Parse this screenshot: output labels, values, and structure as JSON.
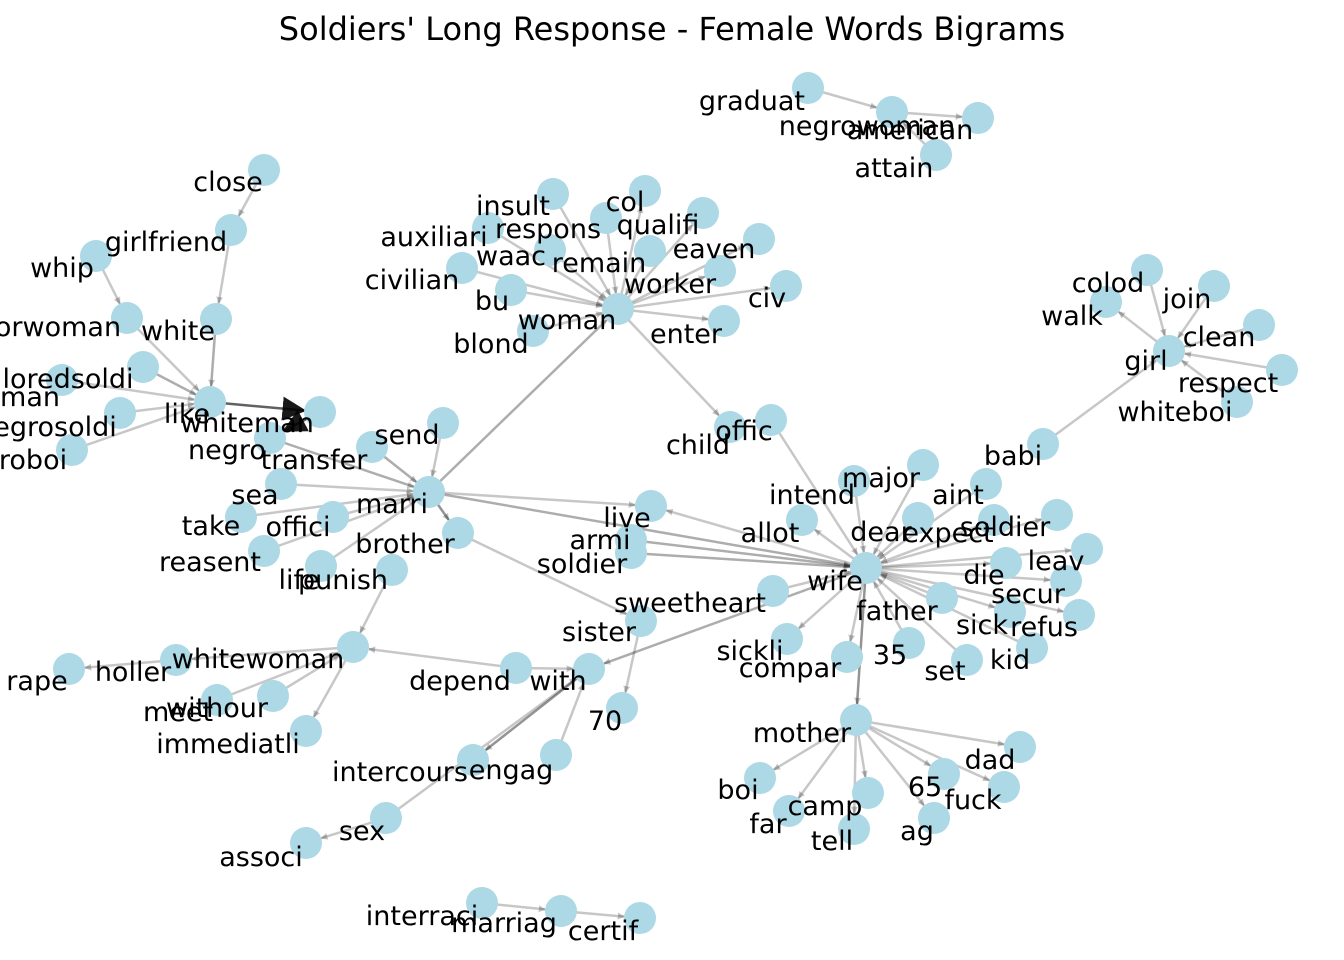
{
  "title": "Soldiers' Long Response - Female Words Bigrams",
  "node_color": "#add8e6",
  "edge_color": "#000000",
  "nodes": [
    {
      "id": "graduat",
      "label": "graduat"
    },
    {
      "id": "negrowoman",
      "label": "negrowoman"
    },
    {
      "id": "american",
      "label": "american"
    },
    {
      "id": "attain",
      "label": "attain"
    },
    {
      "id": "close",
      "label": "close"
    },
    {
      "id": "girlfriend",
      "label": "girlfriend"
    },
    {
      "id": "whip",
      "label": "whip"
    },
    {
      "id": "orwoman",
      "label": "orwoman"
    },
    {
      "id": "white",
      "label": "white"
    },
    {
      "id": "loredsoldi",
      "label": "loredsoldi"
    },
    {
      "id": "man",
      "label": "man"
    },
    {
      "id": "egrosoldi",
      "label": "egrosoldi"
    },
    {
      "id": "roboi",
      "label": "roboi"
    },
    {
      "id": "like",
      "label": "like"
    },
    {
      "id": "whiteman",
      "label": "whiteman"
    },
    {
      "id": "negro",
      "label": "negro"
    },
    {
      "id": "transfer",
      "label": "transfer"
    },
    {
      "id": "send",
      "label": "send"
    },
    {
      "id": "sea",
      "label": "sea"
    },
    {
      "id": "take",
      "label": "take"
    },
    {
      "id": "offici",
      "label": "offici"
    },
    {
      "id": "reasent",
      "label": "reasent"
    },
    {
      "id": "life",
      "label": "life"
    },
    {
      "id": "punish",
      "label": "punish"
    },
    {
      "id": "marri",
      "label": "marri"
    },
    {
      "id": "brother",
      "label": "brother"
    },
    {
      "id": "insult",
      "label": "insult"
    },
    {
      "id": "col",
      "label": "col"
    },
    {
      "id": "respons",
      "label": "respons"
    },
    {
      "id": "qualifi",
      "label": "qualifi"
    },
    {
      "id": "auxiliari",
      "label": "auxiliari"
    },
    {
      "id": "waac",
      "label": "waac"
    },
    {
      "id": "remain",
      "label": "remain"
    },
    {
      "id": "eaven",
      "label": "eaven"
    },
    {
      "id": "civilian",
      "label": "civilian"
    },
    {
      "id": "worker",
      "label": "worker"
    },
    {
      "id": "bu",
      "label": "bu"
    },
    {
      "id": "civ",
      "label": "civ"
    },
    {
      "id": "woman",
      "label": "woman"
    },
    {
      "id": "enter",
      "label": "enter"
    },
    {
      "id": "blond",
      "label": "blond"
    },
    {
      "id": "child",
      "label": "child"
    },
    {
      "id": "offic",
      "label": "offic"
    },
    {
      "id": "colod",
      "label": "colod"
    },
    {
      "id": "join",
      "label": "join"
    },
    {
      "id": "walk",
      "label": "walk"
    },
    {
      "id": "clean",
      "label": "clean"
    },
    {
      "id": "girl",
      "label": "girl"
    },
    {
      "id": "respect",
      "label": "respect"
    },
    {
      "id": "whiteboi",
      "label": "whiteboi"
    },
    {
      "id": "babi",
      "label": "babi"
    },
    {
      "id": "major",
      "label": "major"
    },
    {
      "id": "aint",
      "label": "aint"
    },
    {
      "id": "intend",
      "label": "intend"
    },
    {
      "id": "dear",
      "label": "dear"
    },
    {
      "id": "expect",
      "label": "expect"
    },
    {
      "id": "soldier_r",
      "label": "soldier"
    },
    {
      "id": "allot",
      "label": "allot"
    },
    {
      "id": "leav",
      "label": "leav"
    },
    {
      "id": "live",
      "label": "live"
    },
    {
      "id": "armi",
      "label": "armi"
    },
    {
      "id": "soldier_l",
      "label": "soldier"
    },
    {
      "id": "wife",
      "label": "wife"
    },
    {
      "id": "die",
      "label": "die"
    },
    {
      "id": "secur",
      "label": "secur"
    },
    {
      "id": "father",
      "label": "father"
    },
    {
      "id": "sick",
      "label": "sick"
    },
    {
      "id": "refus",
      "label": "refus"
    },
    {
      "id": "sweetheart",
      "label": "sweetheart"
    },
    {
      "id": "sister",
      "label": "sister"
    },
    {
      "id": "sickli",
      "label": "sickli"
    },
    {
      "id": "compar",
      "label": "compar"
    },
    {
      "id": "n35",
      "label": "35"
    },
    {
      "id": "set",
      "label": "set"
    },
    {
      "id": "kid",
      "label": "kid"
    },
    {
      "id": "whitewoman",
      "label": "whitewoman"
    },
    {
      "id": "holler",
      "label": "holler"
    },
    {
      "id": "rape",
      "label": "rape"
    },
    {
      "id": "depend",
      "label": "depend"
    },
    {
      "id": "with",
      "label": "with"
    },
    {
      "id": "withour",
      "label": "withour"
    },
    {
      "id": "meet",
      "label": "meet"
    },
    {
      "id": "immediatli",
      "label": "immediatli"
    },
    {
      "id": "n70",
      "label": "70"
    },
    {
      "id": "mother",
      "label": "mother"
    },
    {
      "id": "dad",
      "label": "dad"
    },
    {
      "id": "intercours",
      "label": "intercours"
    },
    {
      "id": "engag",
      "label": "engag"
    },
    {
      "id": "boi",
      "label": "boi"
    },
    {
      "id": "n65",
      "label": "65"
    },
    {
      "id": "camp",
      "label": "camp"
    },
    {
      "id": "fuck",
      "label": "fuck"
    },
    {
      "id": "far",
      "label": "far"
    },
    {
      "id": "tell",
      "label": "tell"
    },
    {
      "id": "ag",
      "label": "ag"
    },
    {
      "id": "sex",
      "label": "sex"
    },
    {
      "id": "associ",
      "label": "associ"
    },
    {
      "id": "interraci",
      "label": "interraci"
    },
    {
      "id": "marriag",
      "label": "marriag"
    },
    {
      "id": "certif",
      "label": "certif"
    }
  ],
  "edges": [
    {
      "source": "graduat",
      "target": "negrowoman",
      "weight": 1
    },
    {
      "source": "negrowoman",
      "target": "american",
      "weight": 1
    },
    {
      "source": "attain",
      "target": "negrowoman",
      "weight": 1
    },
    {
      "source": "close",
      "target": "girlfriend",
      "weight": 1
    },
    {
      "source": "girlfriend",
      "target": "white",
      "weight": 1
    },
    {
      "source": "whip",
      "target": "orwoman",
      "weight": 1
    },
    {
      "source": "white",
      "target": "like",
      "weight": 2
    },
    {
      "source": "orwoman",
      "target": "like",
      "weight": 1
    },
    {
      "source": "loredsoldi",
      "target": "like",
      "weight": 2
    },
    {
      "source": "man",
      "target": "like",
      "weight": 1
    },
    {
      "source": "egrosoldi",
      "target": "like",
      "weight": 1
    },
    {
      "source": "roboi",
      "target": "like",
      "weight": 1
    },
    {
      "source": "like",
      "target": "whiteman",
      "weight": 5
    },
    {
      "source": "whiteman",
      "target": "negro",
      "weight": 5
    },
    {
      "source": "negro",
      "target": "marri",
      "weight": 2
    },
    {
      "source": "transfer",
      "target": "marri",
      "weight": 2
    },
    {
      "source": "send",
      "target": "marri",
      "weight": 1
    },
    {
      "source": "marri",
      "target": "woman",
      "weight": 2
    },
    {
      "source": "sea",
      "target": "marri",
      "weight": 1
    },
    {
      "source": "take",
      "target": "marri",
      "weight": 1
    },
    {
      "source": "offici",
      "target": "marri",
      "weight": 1
    },
    {
      "source": "reasent",
      "target": "marri",
      "weight": 1
    },
    {
      "source": "life",
      "target": "marri",
      "weight": 1
    },
    {
      "source": "marri",
      "target": "brother",
      "weight": 3
    },
    {
      "source": "marri",
      "target": "live",
      "weight": 1
    },
    {
      "source": "marri",
      "target": "wife",
      "weight": 2
    },
    {
      "source": "punish",
      "target": "whitewoman",
      "weight": 1
    },
    {
      "source": "whitewoman",
      "target": "holler",
      "weight": 1
    },
    {
      "source": "holler",
      "target": "rape",
      "weight": 1
    },
    {
      "source": "withour",
      "target": "whitewoman",
      "weight": 1
    },
    {
      "source": "meet",
      "target": "whitewoman",
      "weight": 1
    },
    {
      "source": "whitewoman",
      "target": "immediatli",
      "weight": 1
    },
    {
      "source": "depend",
      "target": "whitewoman",
      "weight": 1
    },
    {
      "source": "insult",
      "target": "woman",
      "weight": 1
    },
    {
      "source": "woman",
      "target": "col",
      "weight": 1
    },
    {
      "source": "respons",
      "target": "woman",
      "weight": 1
    },
    {
      "source": "woman",
      "target": "qualifi",
      "weight": 1
    },
    {
      "source": "auxiliari",
      "target": "woman",
      "weight": 1
    },
    {
      "source": "waac",
      "target": "woman",
      "weight": 1
    },
    {
      "source": "remain",
      "target": "woman",
      "weight": 1
    },
    {
      "source": "woman",
      "target": "eaven",
      "weight": 1
    },
    {
      "source": "civilian",
      "target": "woman",
      "weight": 1
    },
    {
      "source": "woman",
      "target": "worker",
      "weight": 1
    },
    {
      "source": "bu",
      "target": "woman",
      "weight": 1
    },
    {
      "source": "woman",
      "target": "civ",
      "weight": 1
    },
    {
      "source": "woman",
      "target": "enter",
      "weight": 1
    },
    {
      "source": "blond",
      "target": "woman",
      "weight": 1
    },
    {
      "source": "woman",
      "target": "child",
      "weight": 1
    },
    {
      "source": "offic",
      "target": "wife",
      "weight": 1
    },
    {
      "source": "colod",
      "target": "girl",
      "weight": 1
    },
    {
      "source": "join",
      "target": "girl",
      "weight": 1
    },
    {
      "source": "girl",
      "target": "walk",
      "weight": 1
    },
    {
      "source": "clean",
      "target": "girl",
      "weight": 1
    },
    {
      "source": "respect",
      "target": "girl",
      "weight": 1
    },
    {
      "source": "whiteboi",
      "target": "girl",
      "weight": 1
    },
    {
      "source": "babi",
      "target": "girl",
      "weight": 1
    },
    {
      "source": "major",
      "target": "wife",
      "weight": 1
    },
    {
      "source": "aint",
      "target": "wife",
      "weight": 1
    },
    {
      "source": "intend",
      "target": "wife",
      "weight": 1
    },
    {
      "source": "dear",
      "target": "wife",
      "weight": 1
    },
    {
      "source": "expect",
      "target": "wife",
      "weight": 1
    },
    {
      "source": "wife",
      "target": "soldier_r",
      "weight": 1
    },
    {
      "source": "wife",
      "target": "allot",
      "weight": 1
    },
    {
      "source": "wife",
      "target": "leav",
      "weight": 1
    },
    {
      "source": "wife",
      "target": "live",
      "weight": 1
    },
    {
      "source": "armi",
      "target": "wife",
      "weight": 2
    },
    {
      "source": "soldier_l",
      "target": "wife",
      "weight": 2
    },
    {
      "source": "wife",
      "target": "die",
      "weight": 1
    },
    {
      "source": "wife",
      "target": "secur",
      "weight": 1
    },
    {
      "source": "father",
      "target": "wife",
      "weight": 1
    },
    {
      "source": "wife",
      "target": "sick",
      "weight": 1
    },
    {
      "source": "wife",
      "target": "refus",
      "weight": 1
    },
    {
      "source": "sweetheart",
      "target": "wife",
      "weight": 1
    },
    {
      "source": "wife",
      "target": "sickli",
      "weight": 1
    },
    {
      "source": "wife",
      "target": "compar",
      "weight": 1
    },
    {
      "source": "n35",
      "target": "wife",
      "weight": 1
    },
    {
      "source": "set",
      "target": "wife",
      "weight": 1
    },
    {
      "source": "kid",
      "target": "wife",
      "weight": 1
    },
    {
      "source": "wife",
      "target": "mother",
      "weight": 3
    },
    {
      "source": "wife",
      "target": "with",
      "weight": 2
    },
    {
      "source": "brother",
      "target": "sister",
      "weight": 1
    },
    {
      "source": "sister",
      "target": "n70",
      "weight": 1
    },
    {
      "source": "depend",
      "target": "with",
      "weight": 1
    },
    {
      "source": "with",
      "target": "intercours",
      "weight": 3
    },
    {
      "source": "engag",
      "target": "with",
      "weight": 1
    },
    {
      "source": "sex",
      "target": "with",
      "weight": 1
    },
    {
      "source": "sex",
      "target": "associ",
      "weight": 1
    },
    {
      "source": "mother",
      "target": "dad",
      "weight": 1
    },
    {
      "source": "mother",
      "target": "boi",
      "weight": 1
    },
    {
      "source": "mother",
      "target": "n65",
      "weight": 1
    },
    {
      "source": "mother",
      "target": "camp",
      "weight": 1
    },
    {
      "source": "mother",
      "target": "fuck",
      "weight": 1
    },
    {
      "source": "mother",
      "target": "far",
      "weight": 1
    },
    {
      "source": "mother",
      "target": "tell",
      "weight": 1
    },
    {
      "source": "mother",
      "target": "ag",
      "weight": 1
    },
    {
      "source": "interraci",
      "target": "marriag",
      "weight": 1
    },
    {
      "source": "marriag",
      "target": "certif",
      "weight": 1
    }
  ]
}
